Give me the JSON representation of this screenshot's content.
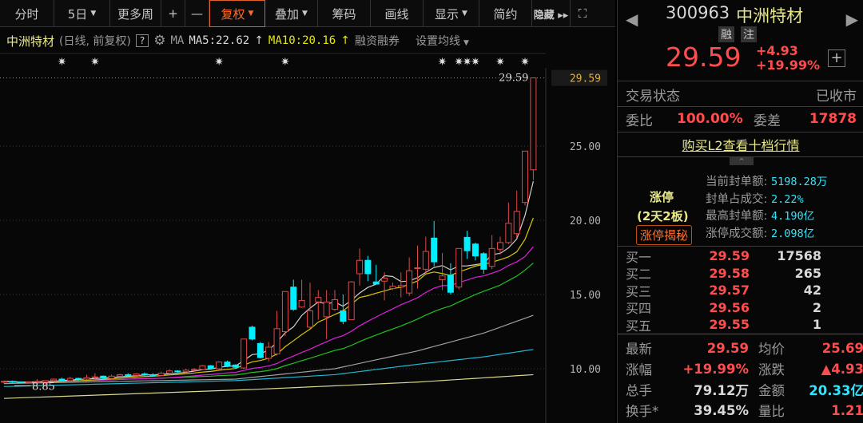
{
  "toolbar": {
    "items": [
      {
        "label": "分时",
        "dropdown": false
      },
      {
        "label": "5日",
        "dropdown": true
      },
      {
        "label": "更多周",
        "dropdown": false
      },
      {
        "label": "+",
        "dropdown": false
      },
      {
        "label": "—",
        "dropdown": false
      },
      {
        "label": "复权",
        "dropdown": true,
        "active": true
      },
      {
        "label": "叠加",
        "dropdown": true
      },
      {
        "label": "筹码",
        "dropdown": false
      },
      {
        "label": "画线",
        "dropdown": false
      },
      {
        "label": "显示",
        "dropdown": true
      },
      {
        "label": "简约",
        "dropdown": false
      },
      {
        "label": "隐藏 ▸▸",
        "dropdown": false
      }
    ],
    "fullscreen_icon": "expand-icon"
  },
  "info": {
    "name": "中洲特材",
    "mode": "(日线, 前复权)",
    "help": "?",
    "ma_label": "MA",
    "ma5": "MA5:22.62",
    "ma10": "MA10:20.16",
    "margin": "融资融券",
    "set_ma": "设置均线"
  },
  "colors": {
    "up": "#e04848",
    "down": "#00f0ff",
    "ma5": "#d0d0d0",
    "ma10": "#d8c800",
    "ma20": "#e020e0",
    "ma30": "#20c020",
    "ma60": "#a0a0a0",
    "ma120": "#20b8d0",
    "ma250": "#d8d890"
  },
  "chart_data": {
    "type": "candlestick",
    "y_ticks": [
      "25.00",
      "20.00",
      "15.00",
      "10.00"
    ],
    "y_tick_values": [
      25,
      20,
      15,
      10
    ],
    "ylim": [
      7.3,
      30.5
    ],
    "high_label": "29.59",
    "low_label": "8.85",
    "last_price_label": "29.59",
    "ohlc": [
      [
        9.1,
        9.2,
        9.0,
        9.15
      ],
      [
        9.15,
        9.2,
        9.05,
        9.1
      ],
      [
        9.1,
        9.15,
        9.0,
        9.05
      ],
      [
        9.05,
        9.15,
        9.0,
        9.1
      ],
      [
        9.1,
        9.3,
        9.05,
        9.15
      ],
      [
        9.1,
        9.2,
        8.85,
        9.2
      ],
      [
        9.2,
        9.35,
        9.15,
        9.3
      ],
      [
        9.3,
        9.4,
        9.15,
        9.2
      ],
      [
        9.2,
        9.45,
        9.15,
        9.35
      ],
      [
        9.35,
        9.4,
        9.2,
        9.3
      ],
      [
        9.3,
        9.6,
        9.25,
        9.4
      ],
      [
        9.4,
        9.7,
        9.3,
        9.45
      ],
      [
        9.5,
        9.55,
        9.3,
        9.35
      ],
      [
        9.35,
        9.6,
        9.3,
        9.5
      ],
      [
        9.5,
        9.65,
        9.4,
        9.6
      ],
      [
        9.6,
        9.7,
        9.5,
        9.55
      ],
      [
        9.55,
        9.7,
        9.45,
        9.65
      ],
      [
        9.65,
        9.75,
        9.5,
        9.6
      ],
      [
        9.6,
        9.7,
        9.5,
        9.55
      ],
      [
        9.55,
        9.8,
        9.5,
        9.7
      ],
      [
        9.7,
        9.95,
        9.6,
        9.85
      ],
      [
        9.85,
        9.9,
        9.7,
        9.8
      ],
      [
        9.8,
        10.0,
        9.75,
        9.9
      ],
      [
        9.9,
        10.05,
        9.8,
        9.95
      ],
      [
        9.95,
        10.25,
        9.9,
        10.2
      ],
      [
        10.2,
        10.25,
        9.95,
        10.0
      ],
      [
        10.0,
        10.5,
        9.95,
        10.45
      ],
      [
        10.45,
        10.55,
        10.1,
        10.2
      ],
      [
        10.25,
        10.3,
        10.0,
        10.1
      ],
      [
        10.05,
        12.0,
        10.0,
        12.0
      ],
      [
        12.8,
        12.9,
        11.9,
        12.0
      ],
      [
        11.7,
        11.8,
        10.7,
        10.75
      ],
      [
        10.7,
        11.8,
        10.5,
        11.45
      ],
      [
        11.0,
        13.9,
        10.9,
        12.7
      ],
      [
        12.5,
        15.2,
        12.2,
        15.2
      ],
      [
        15.5,
        16.0,
        13.9,
        14.0
      ],
      [
        14.15,
        16.0,
        14.1,
        14.6
      ],
      [
        12.8,
        15.8,
        12.7,
        13.9
      ],
      [
        14.5,
        15.3,
        13.3,
        14.8
      ],
      [
        13.5,
        15.3,
        12.0,
        14.5
      ],
      [
        14.0,
        15.3,
        13.9,
        14.65
      ],
      [
        13.9,
        15.0,
        13.0,
        13.2
      ],
      [
        13.3,
        15.9,
        13.3,
        15.85
      ],
      [
        16.4,
        18.1,
        15.6,
        17.3
      ],
      [
        17.3,
        17.6,
        15.9,
        16.4
      ],
      [
        15.85,
        17.0,
        15.7,
        15.7
      ],
      [
        15.9,
        16.5,
        14.6,
        16.1
      ],
      [
        15.4,
        15.8,
        15.3,
        15.55
      ],
      [
        15.5,
        16.5,
        14.8,
        15.6
      ],
      [
        15.1,
        17.5,
        14.9,
        16.6
      ],
      [
        16.75,
        18.3,
        15.4,
        16.8
      ],
      [
        16.7,
        18.9,
        16.4,
        17.9
      ],
      [
        18.8,
        19.95,
        16.9,
        17.2
      ],
      [
        16.0,
        17.8,
        15.3,
        16.25
      ],
      [
        16.3,
        17.1,
        15.0,
        15.15
      ],
      [
        15.5,
        18.1,
        15.35,
        18.1
      ],
      [
        18.85,
        19.3,
        17.4,
        17.95
      ],
      [
        18.4,
        18.5,
        17.3,
        17.6
      ],
      [
        17.75,
        17.85,
        16.4,
        16.7
      ],
      [
        16.9,
        19.0,
        16.7,
        18.1
      ],
      [
        18.05,
        18.9,
        17.7,
        18.5
      ],
      [
        18.5,
        21.2,
        18.4,
        19.8
      ],
      [
        19.1,
        22.0,
        18.8,
        20.6
      ],
      [
        21.2,
        24.66,
        21.0,
        24.66
      ],
      [
        23.4,
        29.59,
        22.7,
        29.59
      ]
    ],
    "long_ma_samples": {
      "ma60": [
        [
          0,
          9.0
        ],
        [
          28,
          9.3
        ],
        [
          40,
          10.0
        ],
        [
          50,
          11.2
        ],
        [
          58,
          12.4
        ],
        [
          64,
          13.6
        ]
      ],
      "ma120": [
        [
          0,
          8.8
        ],
        [
          28,
          9.2
        ],
        [
          40,
          9.6
        ],
        [
          50,
          10.3
        ],
        [
          58,
          10.8
        ],
        [
          64,
          11.3
        ]
      ],
      "ma250": [
        [
          0,
          8.0
        ],
        [
          30,
          8.6
        ],
        [
          50,
          9.1
        ],
        [
          64,
          9.6
        ]
      ]
    },
    "event_marker_candles": [
      7,
      11,
      26,
      34,
      53,
      55,
      56,
      57,
      60,
      63
    ]
  },
  "quote": {
    "code": "300963",
    "name": "中洲特材",
    "badge1": "融",
    "badge2": "注",
    "price": "29.59",
    "change": "+4.93",
    "change_pct": "+19.99%",
    "status_label": "交易状态",
    "status": "已收市",
    "wb_label": "委比",
    "wb": "100.00%",
    "wc_label": "委差",
    "wc": "17878",
    "l2_link": "购买L2查看十档行情",
    "limit_title": "涨停",
    "limit_days": "(2天2板)",
    "limit_btn": "涨停揭秘",
    "limit_stats": [
      {
        "k": "当前封单额:",
        "v": "5198.28万"
      },
      {
        "k": "封单占成交:",
        "v": "2.22%"
      },
      {
        "k": "最高封单额:",
        "v": "4.190亿"
      },
      {
        "k": "涨停成交额:",
        "v": "2.098亿"
      }
    ],
    "bids": [
      {
        "k": "买一",
        "p": "29.59",
        "v": "17568"
      },
      {
        "k": "买二",
        "p": "29.58",
        "v": "265"
      },
      {
        "k": "买三",
        "p": "29.57",
        "v": "42"
      },
      {
        "k": "买四",
        "p": "29.56",
        "v": "2"
      },
      {
        "k": "买五",
        "p": "29.55",
        "v": "1"
      }
    ],
    "stats": [
      [
        {
          "k": "最新",
          "v": "29.59",
          "c": "red"
        },
        {
          "k": "均价",
          "v": "25.69",
          "c": "red"
        }
      ],
      [
        {
          "k": "涨幅",
          "v": "+19.99%",
          "c": "red"
        },
        {
          "k": "涨跌",
          "v": "▲4.93",
          "c": "red"
        }
      ],
      [
        {
          "k": "总手",
          "v": "79.12万",
          "c": "wh"
        },
        {
          "k": "金额",
          "v": "20.33亿",
          "c": "cyan"
        }
      ],
      [
        {
          "k": "换手*",
          "v": "39.45%",
          "c": "wh"
        },
        {
          "k": "量比",
          "v": "1.21",
          "c": "red"
        }
      ]
    ]
  }
}
